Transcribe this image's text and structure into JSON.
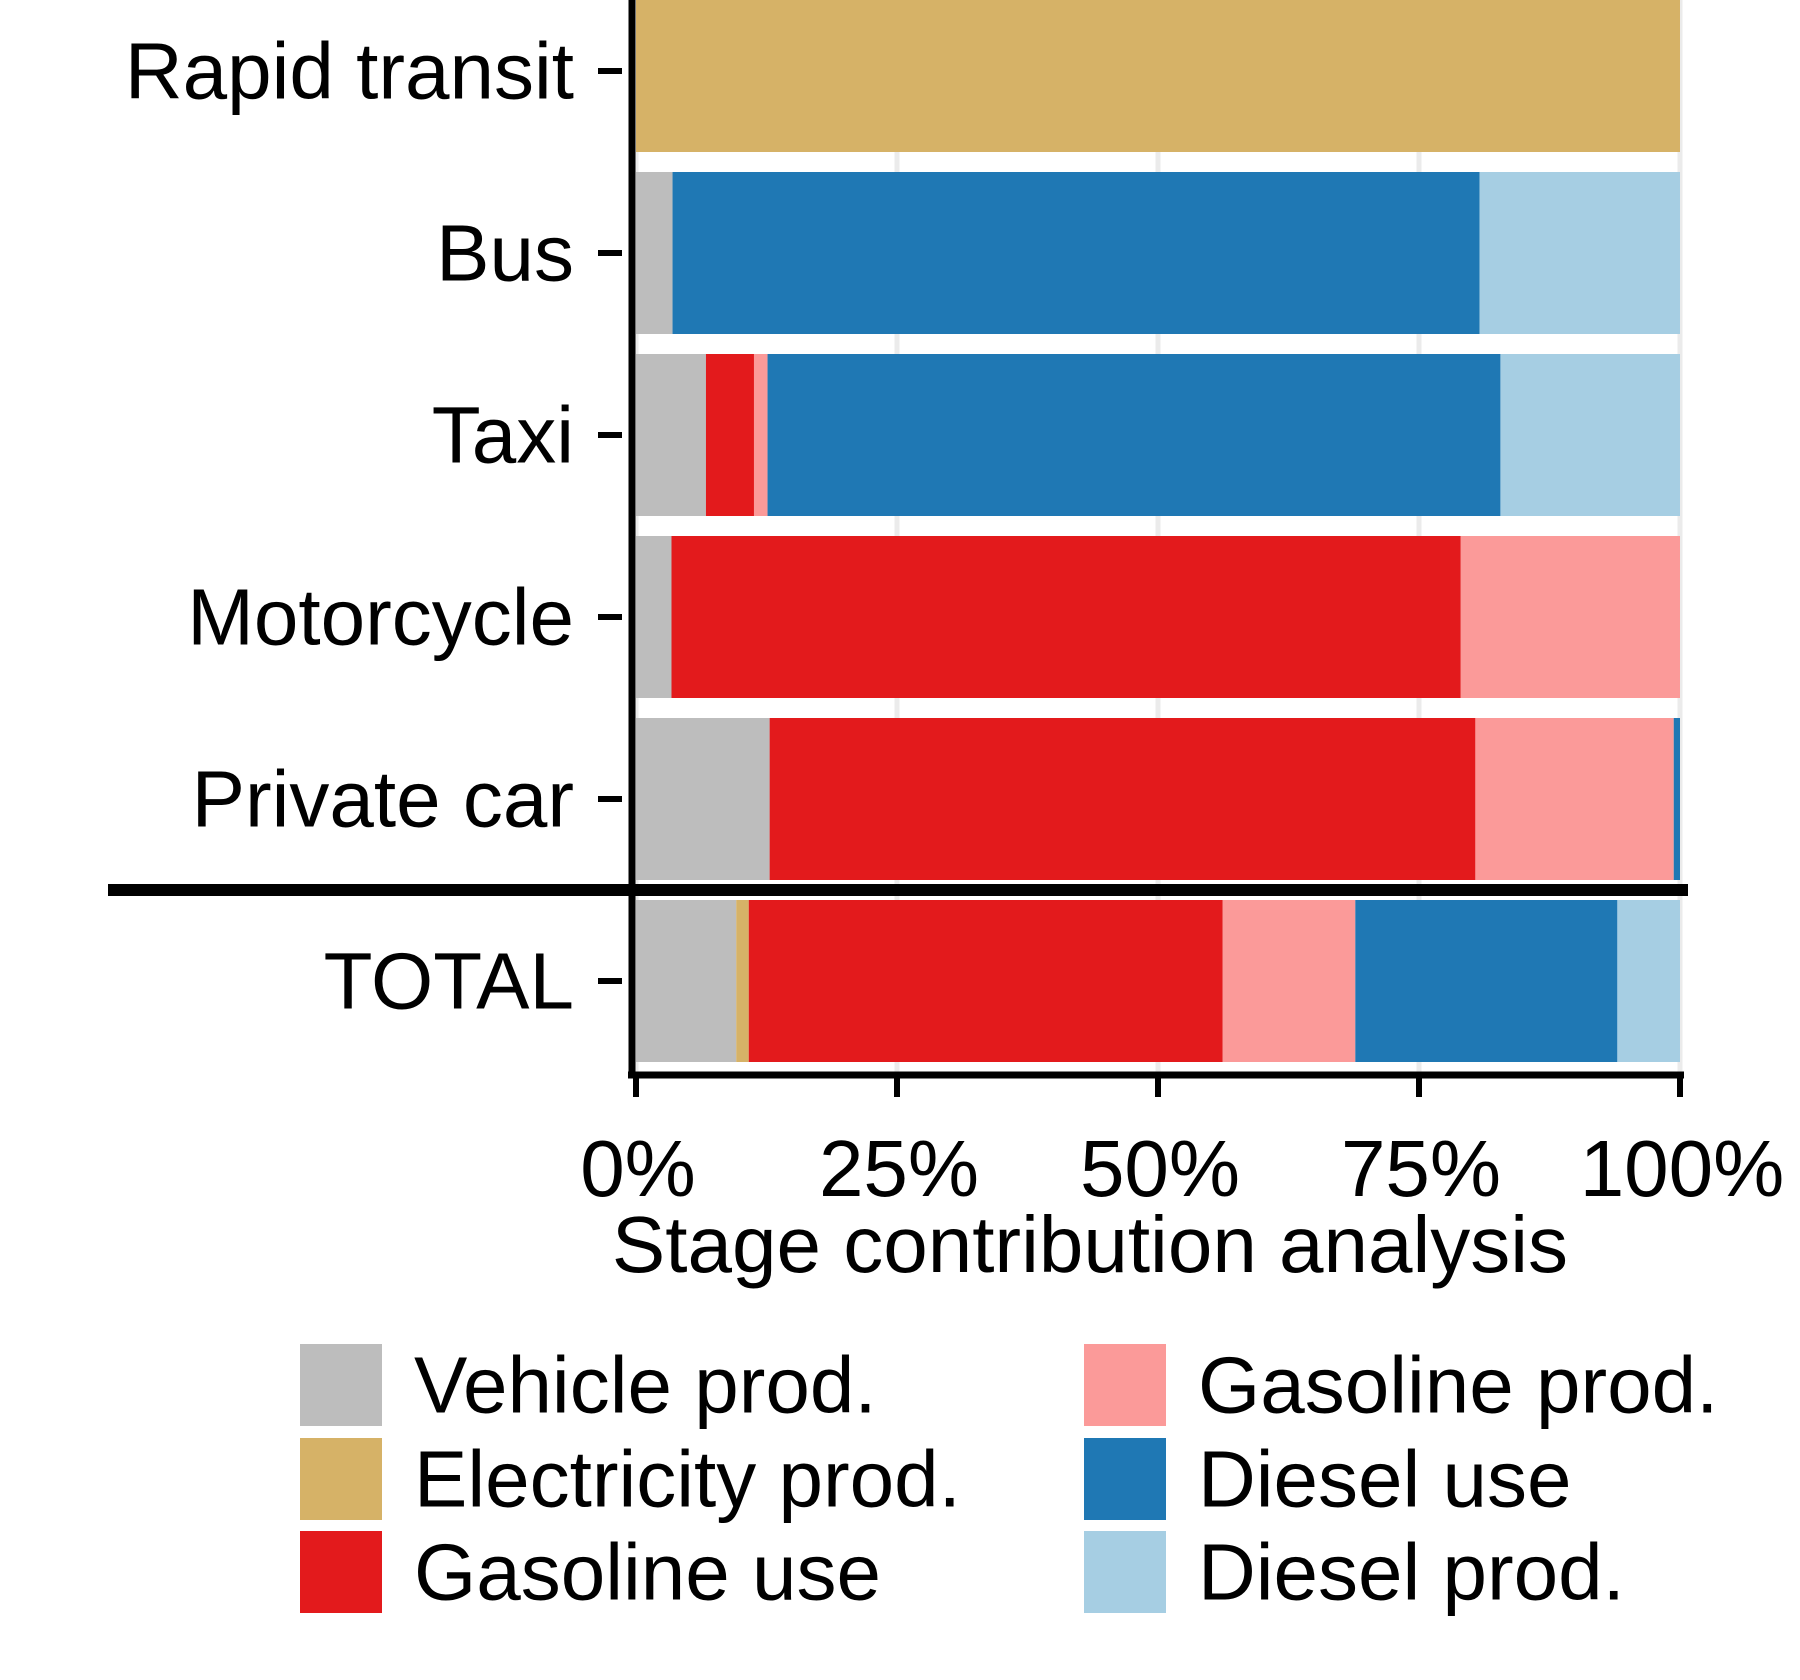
{
  "chart_data": {
    "type": "bar",
    "orientation": "horizontal",
    "stacked": true,
    "normalized": true,
    "xlabel": "Stage contribution analysis",
    "ylabel": "",
    "xlim": [
      0,
      100
    ],
    "xticks": [
      {
        "value": 0,
        "label": "0%"
      },
      {
        "value": 25,
        "label": "25%"
      },
      {
        "value": 50,
        "label": "50%"
      },
      {
        "value": 75,
        "label": "75%"
      },
      {
        "value": 100,
        "label": "100%"
      }
    ],
    "categories": [
      "Rapid transit",
      "Bus",
      "Taxi",
      "Motorcycle",
      "Private car",
      "TOTAL"
    ],
    "separator_after": "Private car",
    "legend_position": "bottom",
    "series": [
      {
        "name": "Vehicle prod.",
        "color": "#bdbdbd",
        "values": [
          0,
          3.5,
          6.7,
          3.4,
          12.8,
          9.6
        ]
      },
      {
        "name": "Electricity prod.",
        "color": "#d6b267",
        "values": [
          100,
          0,
          0,
          0,
          0,
          1.2
        ]
      },
      {
        "name": "Gasoline use",
        "color": "#e31a1c",
        "values": [
          0,
          0,
          4.6,
          75.6,
          67.6,
          45.4
        ]
      },
      {
        "name": "Gasoline prod.",
        "color": "#fb9a99",
        "values": [
          0,
          0,
          1.3,
          21.0,
          19.0,
          12.7
        ]
      },
      {
        "name": "Diesel use",
        "color": "#1f78b4",
        "values": [
          0,
          77.3,
          70.2,
          0,
          0.6,
          25.1
        ]
      },
      {
        "name": "Diesel prod.",
        "color": "#a6cee3",
        "values": [
          0,
          19.2,
          17.2,
          0,
          0,
          6.0
        ]
      }
    ]
  }
}
